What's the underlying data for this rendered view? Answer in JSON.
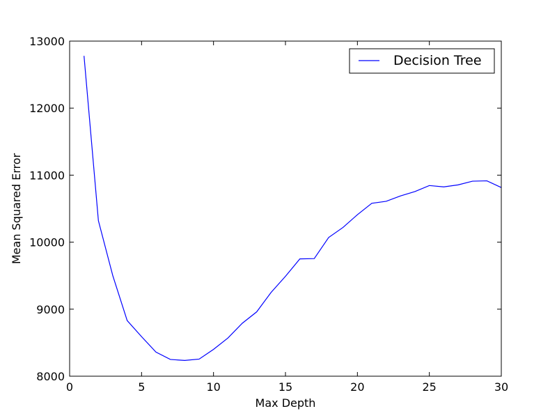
{
  "chart_data": {
    "type": "line",
    "title": "",
    "xlabel": "Max Depth",
    "ylabel": "Mean Squared Error",
    "xlim": [
      0,
      30
    ],
    "ylim": [
      8000,
      13000
    ],
    "xticks": [
      0,
      5,
      10,
      15,
      20,
      25,
      30
    ],
    "yticks": [
      8000,
      9000,
      10000,
      11000,
      12000,
      13000
    ],
    "grid": false,
    "legend_position": "top-right",
    "series": [
      {
        "name": "Decision Tree",
        "color": "#0000ff",
        "x": [
          1,
          2,
          3,
          4,
          5,
          6,
          7,
          8,
          9,
          10,
          11,
          12,
          13,
          14,
          15,
          16,
          17,
          18,
          19,
          20,
          21,
          22,
          23,
          24,
          25,
          26,
          27,
          28,
          29,
          30
        ],
        "y": [
          12780,
          10320,
          9500,
          8830,
          8590,
          8360,
          8250,
          8235,
          8255,
          8400,
          8570,
          8790,
          8960,
          9250,
          9490,
          9750,
          9755,
          10070,
          10220,
          10410,
          10580,
          10610,
          10690,
          10755,
          10845,
          10825,
          10855,
          10910,
          10915,
          10815
        ]
      }
    ]
  }
}
